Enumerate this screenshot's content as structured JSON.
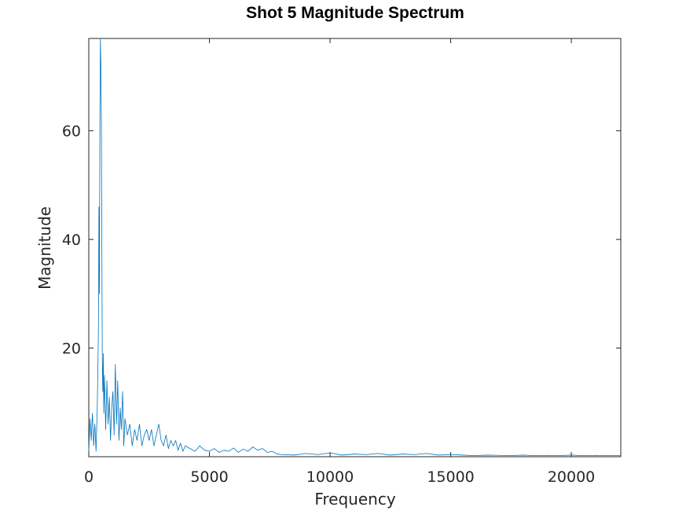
{
  "chart_data": {
    "type": "line",
    "title": "Shot 5 Magnitude Spectrum",
    "xlabel": "Frequency",
    "ylabel": "Magnitude",
    "xlim": [
      0,
      22050
    ],
    "ylim": [
      0,
      77
    ],
    "xticks": [
      0,
      5000,
      10000,
      15000,
      20000
    ],
    "xtick_labels": [
      "0",
      "5000",
      "10000",
      "15000",
      "20000"
    ],
    "yticks": [
      20,
      40,
      60
    ],
    "ytick_labels": [
      "20",
      "40",
      "60"
    ],
    "grid": false,
    "line_color": "#0072BD",
    "series": [
      {
        "x": [
          0,
          50,
          100,
          150,
          200,
          250,
          300,
          350,
          380,
          400,
          420,
          440,
          460,
          480,
          500,
          520,
          540,
          560,
          580,
          600,
          620,
          650,
          700,
          750,
          800,
          850,
          900,
          950,
          1000,
          1050,
          1100,
          1150,
          1200,
          1250,
          1300,
          1350,
          1400,
          1450,
          1500,
          1600,
          1700,
          1800,
          1900,
          2000,
          2100,
          2200,
          2300,
          2400,
          2500,
          2600,
          2700,
          2800,
          2900,
          3000,
          3100,
          3200,
          3300,
          3400,
          3500,
          3600,
          3700,
          3800,
          3900,
          4000,
          4200,
          4400,
          4600,
          4800,
          5000,
          5200,
          5400,
          5600,
          5800,
          6000,
          6200,
          6400,
          6600,
          6800,
          7000,
          7200,
          7400,
          7600,
          7800,
          8000,
          8500,
          9000,
          9500,
          10000,
          10500,
          11000,
          11500,
          12000,
          12500,
          13000,
          13500,
          14000,
          14500,
          15000,
          15500,
          16000,
          16500,
          17000,
          17500,
          18000,
          18500,
          19000,
          19500,
          20000,
          20500,
          21000,
          21500,
          22050
        ],
        "y": [
          1,
          7,
          3,
          8,
          2,
          6,
          1,
          9,
          17,
          24,
          46,
          30,
          62,
          77,
          72,
          62,
          40,
          18,
          12,
          19,
          8,
          15,
          5,
          14,
          6,
          11,
          3,
          9,
          12,
          4,
          17,
          6,
          14,
          3,
          9,
          5,
          12,
          2,
          7,
          4,
          6,
          2,
          5,
          3,
          6,
          2,
          4,
          5,
          3,
          5,
          2,
          4,
          6,
          3,
          2,
          4,
          1.5,
          3,
          2,
          3,
          1.2,
          2.5,
          1,
          2,
          1.5,
          1,
          2,
          1.2,
          1,
          1.5,
          0.8,
          1.2,
          1,
          1.6,
          0.8,
          1.4,
          1,
          1.8,
          1.2,
          1.5,
          0.8,
          1,
          0.5,
          0.4,
          0.3,
          0.6,
          0.4,
          0.7,
          0.3,
          0.5,
          0.4,
          0.6,
          0.3,
          0.5,
          0.4,
          0.6,
          0.3,
          0.4,
          0.3,
          0.2,
          0.3,
          0.25,
          0.2,
          0.3,
          0.2,
          0.25,
          0.2,
          0.3,
          0.2,
          0.25,
          0.2,
          0.2
        ]
      }
    ]
  }
}
